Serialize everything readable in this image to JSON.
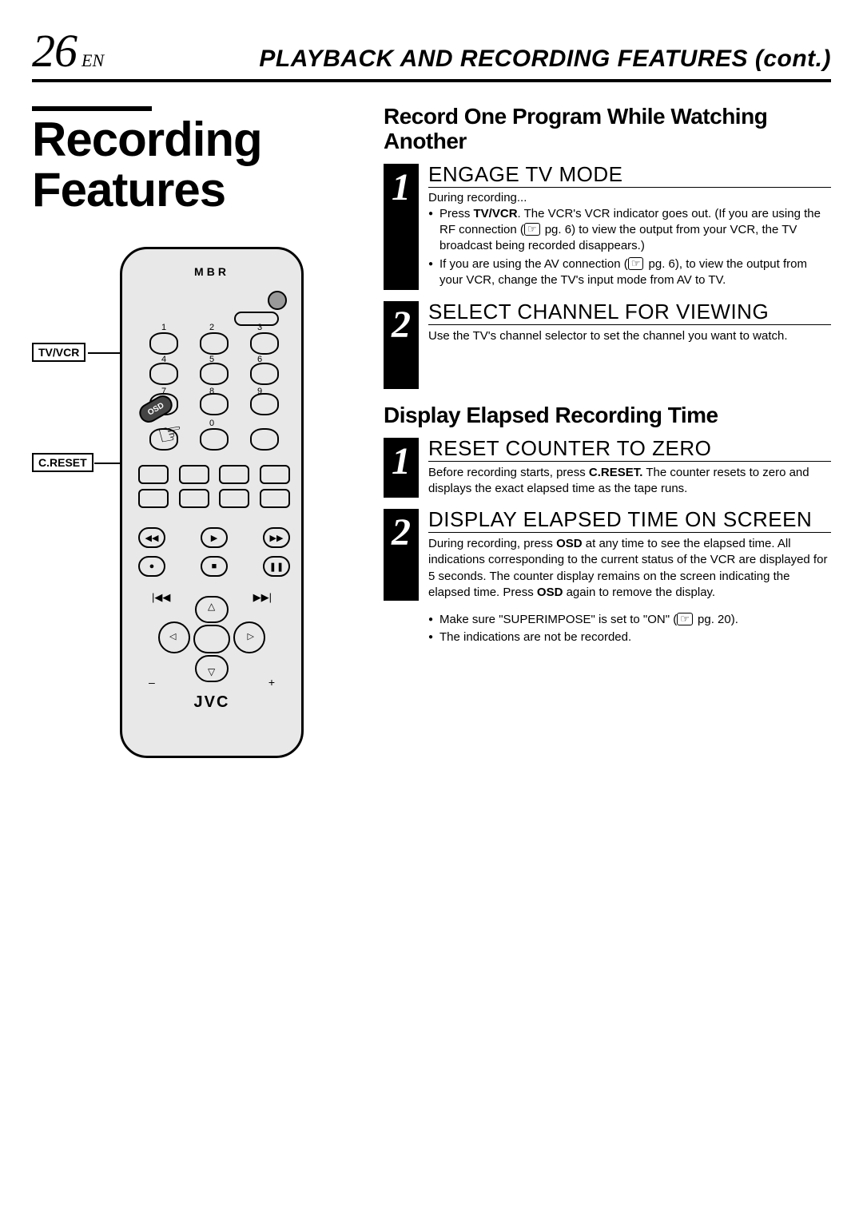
{
  "page_number": "26",
  "lang_code": "EN",
  "header_title": "PLAYBACK AND RECORDING FEATURES (cont.)",
  "main_title_line1": "Recording",
  "main_title_line2": "Features",
  "remote": {
    "brand_top": "MBR",
    "brand_bottom": "JVC",
    "callout_tvvcr": "TV/VCR",
    "callout_creset": "C.RESET",
    "osd": "OSD",
    "num_labels": [
      "1",
      "2",
      "3",
      "4",
      "5",
      "6",
      "7",
      "8",
      "9",
      "0"
    ]
  },
  "sections": [
    {
      "title": "Record One Program While Watching Another",
      "steps": [
        {
          "num": "1",
          "heading": "ENGAGE TV MODE",
          "lead": "During recording...",
          "bullets": [
            "Press <b>TV/VCR</b>. The VCR's VCR indicator goes out. (If you are using the RF connection (☞ pg. 6) to view the output from your VCR, the TV broadcast being recorded disappears.)",
            "If you are using the AV connection (☞ pg. 6), to view the output from your VCR, change the TV's input mode from AV to TV."
          ]
        },
        {
          "num": "2",
          "heading": "SELECT CHANNEL FOR VIEWING",
          "text": "Use the TV's channel selector to set the channel you want to watch."
        }
      ]
    },
    {
      "title": "Display Elapsed Recording Time",
      "steps": [
        {
          "num": "1",
          "heading": "RESET COUNTER TO ZERO",
          "text": "Before recording starts, press <b>C.RESET.</b> The counter resets to zero and displays the exact elapsed time as the tape runs."
        },
        {
          "num": "2",
          "heading": "DISPLAY ELAPSED TIME ON SCREEN",
          "text": "During recording, press <b>OSD</b> at any time to see the elapsed time. All indications corresponding to the current status of the VCR are displayed for 5 seconds. The counter display remains on the screen indicating the elapsed time. Press <b>OSD</b> again to remove the display."
        }
      ],
      "notes": [
        "Make sure \"SUPERIMPOSE\" is set to \"ON\" (☞ pg. 20).",
        "The indications are not be recorded."
      ]
    }
  ]
}
